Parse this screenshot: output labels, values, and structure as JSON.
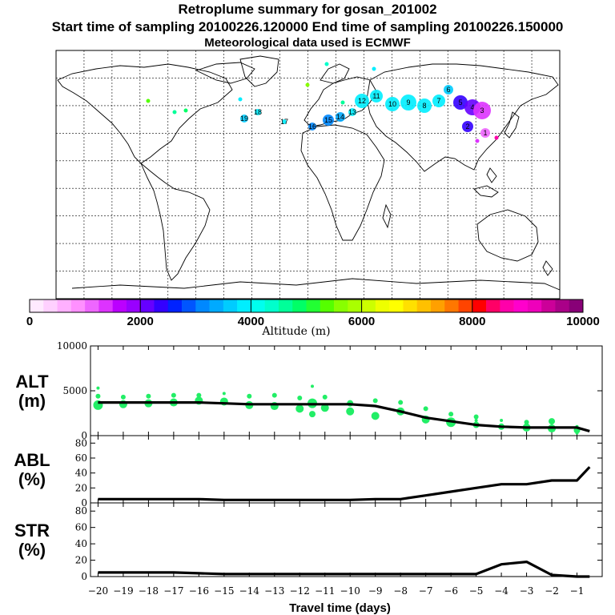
{
  "header": {
    "title": "Retroplume summary for gosan_201002",
    "sampling": "Start time of sampling 20100226.120000     End time of sampling 20100226.150000",
    "meteo": "Meteorological data used is ECMWF"
  },
  "colorbar": {
    "label": "Altitude (m)",
    "ticks": [
      "0",
      "2000",
      "4000",
      "6000",
      "8000",
      "10000"
    ],
    "colors": [
      "#ffeaff",
      "#ffd0ff",
      "#ffb0ff",
      "#ff90ff",
      "#ee66ff",
      "#dd33ff",
      "#bb00ff",
      "#9900ff",
      "#6600ff",
      "#3300ff",
      "#0022ff",
      "#0055ff",
      "#0088ff",
      "#00aaff",
      "#00ccff",
      "#00eeff",
      "#00ffee",
      "#00ffcc",
      "#00ff99",
      "#00ff66",
      "#22ff33",
      "#55ff00",
      "#88ff00",
      "#aaff00",
      "#ccff00",
      "#eeff00",
      "#ffff00",
      "#ffe000",
      "#ffc000",
      "#ffa000",
      "#ff7700",
      "#ff4400",
      "#ff0000",
      "#ff0066",
      "#ff00aa",
      "#ff00cc",
      "#ee00bb",
      "#cc0099",
      "#aa0088",
      "#880077"
    ]
  },
  "map": {
    "plume_labels": [
      "19",
      "18",
      "17",
      "16",
      "15",
      "14",
      "13",
      "12",
      "11",
      "10",
      "9",
      "8",
      "7",
      "6",
      "5",
      "4",
      "3",
      "2",
      "1"
    ]
  },
  "chart_data": [
    {
      "type": "line",
      "name": "ALT",
      "ylabel": "ALT\n(m)",
      "ylim": [
        0,
        10000
      ],
      "yticks": [
        0,
        5000,
        10000
      ],
      "x": [
        -20,
        -19,
        -18,
        -17,
        -16,
        -15,
        -14,
        -13,
        -12,
        -11,
        -10,
        -9,
        -8,
        -7,
        -6,
        -5,
        -4,
        -3,
        -2,
        -1,
        -0.5
      ],
      "values": [
        3700,
        3700,
        3700,
        3700,
        3700,
        3600,
        3500,
        3500,
        3500,
        3500,
        3500,
        3300,
        2700,
        2000,
        1600,
        1200,
        1000,
        900,
        900,
        900,
        500
      ],
      "scatter": [
        {
          "x": -20,
          "y": 3400,
          "s": 6
        },
        {
          "x": -20,
          "y": 4400,
          "s": 3
        },
        {
          "x": -20,
          "y": 5300,
          "s": 2
        },
        {
          "x": -19,
          "y": 3500,
          "s": 5
        },
        {
          "x": -19,
          "y": 4300,
          "s": 3
        },
        {
          "x": -18,
          "y": 3600,
          "s": 5
        },
        {
          "x": -18,
          "y": 4400,
          "s": 3
        },
        {
          "x": -17,
          "y": 3700,
          "s": 5
        },
        {
          "x": -17,
          "y": 4500,
          "s": 3
        },
        {
          "x": -16,
          "y": 3900,
          "s": 5
        },
        {
          "x": -16,
          "y": 4500,
          "s": 3
        },
        {
          "x": -15,
          "y": 3800,
          "s": 5
        },
        {
          "x": -15,
          "y": 4700,
          "s": 2
        },
        {
          "x": -14,
          "y": 3400,
          "s": 5
        },
        {
          "x": -14,
          "y": 4400,
          "s": 3
        },
        {
          "x": -13,
          "y": 3300,
          "s": 5
        },
        {
          "x": -13,
          "y": 4500,
          "s": 3
        },
        {
          "x": -12,
          "y": 3000,
          "s": 5
        },
        {
          "x": -12,
          "y": 4200,
          "s": 3
        },
        {
          "x": -11.5,
          "y": 3600,
          "s": 6
        },
        {
          "x": -11.5,
          "y": 2400,
          "s": 4
        },
        {
          "x": -11.5,
          "y": 5500,
          "s": 2
        },
        {
          "x": -11,
          "y": 3100,
          "s": 5
        },
        {
          "x": -11,
          "y": 4300,
          "s": 3
        },
        {
          "x": -10,
          "y": 2700,
          "s": 5
        },
        {
          "x": -10,
          "y": 3600,
          "s": 4
        },
        {
          "x": -9,
          "y": 2200,
          "s": 5
        },
        {
          "x": -9,
          "y": 3900,
          "s": 3
        },
        {
          "x": -8,
          "y": 2700,
          "s": 5
        },
        {
          "x": -8,
          "y": 3700,
          "s": 3
        },
        {
          "x": -7,
          "y": 1800,
          "s": 5
        },
        {
          "x": -7,
          "y": 3000,
          "s": 3
        },
        {
          "x": -6,
          "y": 1500,
          "s": 6
        },
        {
          "x": -6,
          "y": 2400,
          "s": 3
        },
        {
          "x": -5,
          "y": 1200,
          "s": 4
        },
        {
          "x": -5,
          "y": 2100,
          "s": 3
        },
        {
          "x": -5,
          "y": 1700,
          "s": 2
        },
        {
          "x": -4,
          "y": 1000,
          "s": 4
        },
        {
          "x": -4,
          "y": 1700,
          "s": 2
        },
        {
          "x": -3,
          "y": 900,
          "s": 5
        },
        {
          "x": -3,
          "y": 1500,
          "s": 3
        },
        {
          "x": -2,
          "y": 800,
          "s": 5
        },
        {
          "x": -2,
          "y": 1600,
          "s": 4
        },
        {
          "x": -1,
          "y": 600,
          "s": 4
        },
        {
          "x": -1,
          "y": 1000,
          "s": 2
        },
        {
          "x": -1,
          "y": 300,
          "s": 2
        }
      ]
    },
    {
      "type": "line",
      "name": "ABL",
      "ylabel": "ABL\n(%)",
      "ylim": [
        0,
        90
      ],
      "yticks": [
        0,
        20,
        40,
        60,
        80
      ],
      "x": [
        -20,
        -19,
        -18,
        -17,
        -16,
        -15,
        -14,
        -13,
        -12,
        -11,
        -10,
        -9,
        -8,
        -7,
        -6,
        -5,
        -4,
        -3,
        -2,
        -1,
        -0.5
      ],
      "values": [
        5,
        5,
        5,
        5,
        5,
        4,
        4,
        4,
        4,
        4,
        4,
        5,
        5,
        10,
        15,
        20,
        25,
        25,
        30,
        30,
        48
      ]
    },
    {
      "type": "line",
      "name": "STR",
      "ylabel": "STR\n(%)",
      "ylim": [
        0,
        90
      ],
      "yticks": [
        0,
        20,
        40,
        60,
        80
      ],
      "xlabel": "Travel time (days)",
      "xticks": [
        -20,
        -19,
        -18,
        -17,
        -16,
        -15,
        -14,
        -13,
        -12,
        -11,
        -10,
        -9,
        -8,
        -7,
        -6,
        -5,
        -4,
        -3,
        -2,
        -1
      ],
      "x": [
        -20,
        -19,
        -18,
        -17,
        -16,
        -15,
        -14,
        -13,
        -12,
        -11,
        -10,
        -9,
        -8,
        -7,
        -6,
        -5,
        -4,
        -3,
        -2,
        -1,
        -0.5
      ],
      "values": [
        5,
        5,
        5,
        5,
        4,
        3,
        3,
        3,
        3,
        3,
        3,
        3,
        3,
        3,
        3,
        3,
        15,
        18,
        2,
        0,
        0
      ]
    }
  ]
}
